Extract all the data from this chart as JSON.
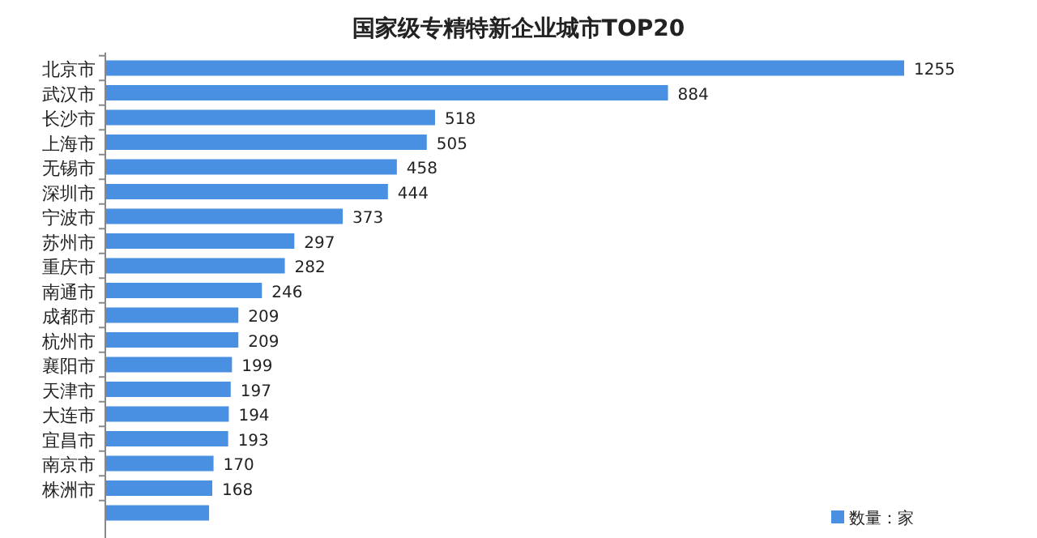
{
  "chart_data": {
    "type": "bar",
    "orientation": "horizontal",
    "title": "国家级专精特新企业城市TOP20",
    "categories": [
      "北京市",
      "武汉市",
      "长沙市",
      "上海市",
      "无锡市",
      "深圳市",
      "宁波市",
      "苏州市",
      "重庆市",
      "南通市",
      "成都市",
      "杭州市",
      "襄阳市",
      "天津市",
      "大连市",
      "宜昌市",
      "南京市",
      "株洲市",
      null
    ],
    "series": [
      {
        "name": "数量：家",
        "color": "#4a90e2",
        "values": [
          1255,
          884,
          518,
          505,
          458,
          444,
          373,
          297,
          282,
          246,
          209,
          209,
          199,
          197,
          194,
          193,
          170,
          168,
          163
        ],
        "value_labels": [
          "1255",
          "884",
          "518",
          "505",
          "458",
          "444",
          "373",
          "297",
          "282",
          "246",
          "209",
          "209",
          "199",
          "197",
          "194",
          "193",
          "170",
          "168",
          null
        ]
      }
    ],
    "legend": "bottom right"
  }
}
